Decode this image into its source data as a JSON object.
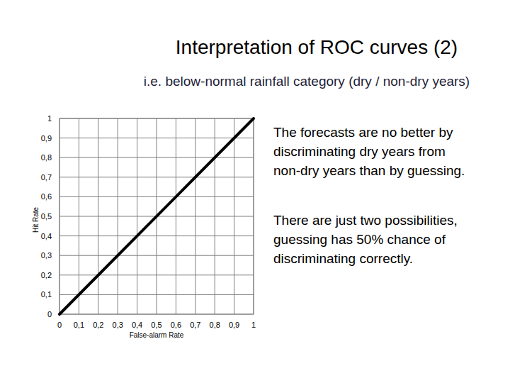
{
  "chart_data": {
    "type": "line",
    "title": "Interpretation of ROC curves (2)",
    "subtitle": "i.e. below-normal rainfall category (dry / non-dry years)",
    "x_label": "False-alarm Rate",
    "y_label": "Hit Rate",
    "x": [
      0,
      1
    ],
    "values": [
      0,
      1
    ],
    "color": "#000000",
    "xlim": [
      0,
      1
    ],
    "ylim": [
      0,
      1
    ],
    "xticks": [
      0,
      {
        "value": 0.1,
        "label": "0,1"
      },
      {
        "value": 0.2,
        "label": "0,2"
      },
      {
        "value": 0.3,
        "label": "0,3"
      },
      {
        "value": 0.4,
        "label": "0,4"
      },
      {
        "value": 0.5,
        "label": "0,5"
      },
      {
        "value": 0.6,
        "label": "0,6"
      },
      {
        "value": 0.7,
        "label": "0,7"
      },
      {
        "value": 0.8,
        "label": "0,8"
      },
      {
        "value": 0.9,
        "label": "0,9"
      },
      1
    ],
    "yticks": [
      0,
      {
        "value": 0.1,
        "label": "0,1"
      },
      {
        "value": 0.2,
        "label": "0,2"
      },
      {
        "value": 0.3,
        "label": "0,3"
      },
      {
        "value": 0.4,
        "label": "0,4"
      },
      {
        "value": 0.5,
        "label": "0,5"
      },
      {
        "value": 0.6,
        "label": "0,6"
      },
      {
        "value": 0.7,
        "label": "0,7"
      },
      {
        "value": 0.8,
        "label": "0,8"
      },
      {
        "value": 0.9,
        "label": "0,9"
      },
      1
    ],
    "grid": true,
    "annotations": [
      [
        "The forecasts are no better by",
        "discriminating dry years from",
        "non-dry years than by guessing."
      ],
      [
        "There are just two possibilities,",
        "guessing has 50% chance of",
        "discriminating correctly."
      ]
    ]
  }
}
